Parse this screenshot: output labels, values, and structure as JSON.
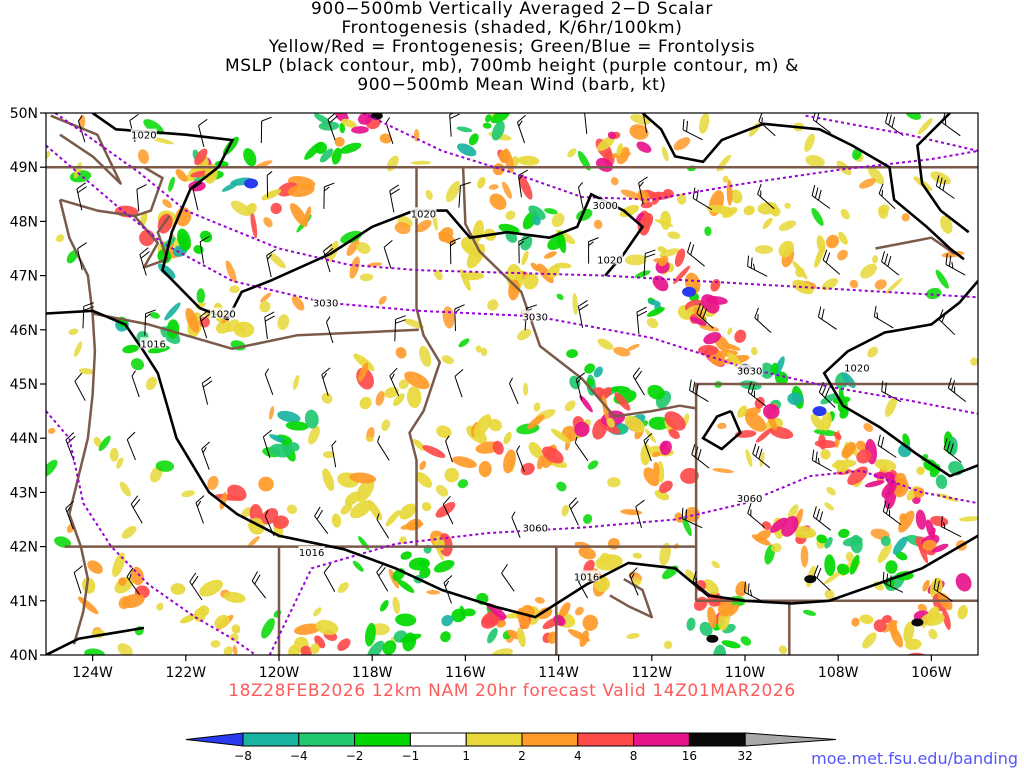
{
  "title": {
    "lines": [
      "900−500mb Vertically Averaged 2−D Scalar",
      "Frontogenesis (shaded, K/6hr/100km)",
      "Yellow/Red = Frontogenesis;  Green/Blue = Frontolysis",
      "MSLP (black contour, mb), 700mb height (purple contour, m) &",
      "900−500mb Mean Wind (barb, kt)"
    ]
  },
  "map": {
    "lat_labels": [
      "50N",
      "49N",
      "48N",
      "47N",
      "46N",
      "45N",
      "44N",
      "43N",
      "42N",
      "41N",
      "40N"
    ],
    "lon_labels": [
      "124W",
      "122W",
      "120W",
      "118W",
      "116W",
      "114W",
      "112W",
      "110W",
      "108W",
      "106W"
    ],
    "lat_range": [
      40,
      50
    ],
    "lon_range": [
      -125,
      -105
    ],
    "mslp_labels": [
      {
        "text": "1020",
        "lon": -122.9,
        "lat": 49.6
      },
      {
        "text": "1020",
        "lon": -116.9,
        "lat": 48.15
      },
      {
        "text": "1020",
        "lon": -121.2,
        "lat": 46.3
      },
      {
        "text": "1016",
        "lon": -122.7,
        "lat": 45.75
      },
      {
        "text": "1020",
        "lon": -112.9,
        "lat": 47.3
      },
      {
        "text": "1020",
        "lon": -107.6,
        "lat": 45.3
      },
      {
        "text": "1016",
        "lon": -119.3,
        "lat": 41.9
      },
      {
        "text": "1016",
        "lon": -113.4,
        "lat": 41.45
      }
    ],
    "height_labels": [
      {
        "text": "3000",
        "lon": -113.0,
        "lat": 48.3
      },
      {
        "text": "3030",
        "lon": -119.0,
        "lat": 46.5
      },
      {
        "text": "3030",
        "lon": -114.5,
        "lat": 46.25
      },
      {
        "text": "3030",
        "lon": -109.9,
        "lat": 45.25
      },
      {
        "text": "3060",
        "lon": -109.9,
        "lat": 42.9
      },
      {
        "text": "3060",
        "lon": -114.5,
        "lat": 42.35
      }
    ]
  },
  "colorbar": {
    "ticks": [
      "−8",
      "−4",
      "−2",
      "−1",
      "1",
      "2",
      "4",
      "8",
      "16",
      "32"
    ],
    "colors": [
      "#2a3af0",
      "#18b4a0",
      "#22c870",
      "#00d800",
      "#ffffff",
      "#e8d83a",
      "#ff9a28",
      "#ff4a4a",
      "#e8148c",
      "#0a0a0a",
      "#a8a8a8"
    ]
  },
  "footer": {
    "forecast": "18Z28FEB2026  12km  NAM  20hr  forecast  Valid  14Z01MAR2026",
    "website": "moe.met.fsu.edu/banding"
  },
  "colors": {
    "mslp": "#000000",
    "height": "#9b00d4",
    "borders": "#7b5a4a",
    "forecast_text": "#ff5a5a",
    "website_text": "#5555ff"
  }
}
